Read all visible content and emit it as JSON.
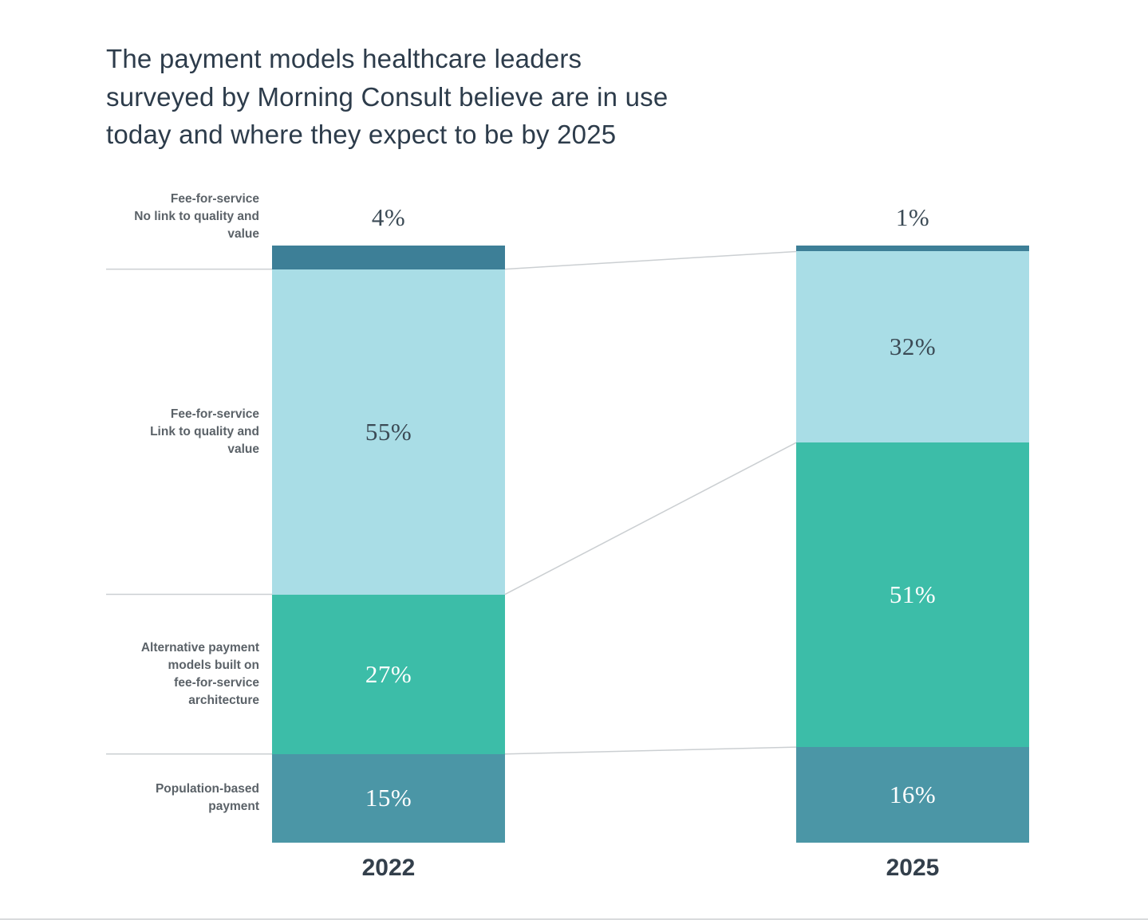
{
  "title": {
    "lines": [
      "The payment models healthcare leaders",
      "surveyed by Morning Consult believe are in use",
      "today and where they expect to be by 2025"
    ]
  },
  "chart_data": {
    "type": "bar",
    "variant": "stacked-100-percent",
    "title": "The payment models healthcare leaders surveyed by Morning Consult believe are in use today and where they expect to be by 2025",
    "unit": "%",
    "legend": "none",
    "ylim": [
      0,
      100
    ],
    "columns": [
      "2022",
      "2025"
    ],
    "segments": [
      {
        "label": "Fee-for-service No link to quality and value",
        "label_lines": [
          "Fee-for-service",
          "No link to quality and",
          "value"
        ],
        "color": "#3d7f97",
        "values": [
          4,
          1
        ],
        "value_placement": "above",
        "value_text_color": "#3b4a55"
      },
      {
        "label": "Fee-for-service Link to quality and value",
        "label_lines": [
          "Fee-for-service",
          "Link to quality and",
          "value"
        ],
        "color": "#a9dde6",
        "values": [
          55,
          32
        ],
        "value_placement": "inside",
        "value_text_color": "#3b4a55"
      },
      {
        "label": "Alternative payment models built on fee-for-service architecture",
        "label_lines": [
          "Alternative payment",
          "models built on",
          "fee-for-service",
          "architecture"
        ],
        "color": "#3cbda8",
        "values": [
          27,
          51
        ],
        "value_placement": "inside",
        "value_text_color": "#ffffff"
      },
      {
        "label": "Population-based payment",
        "label_lines": [
          "Population-based",
          "payment"
        ],
        "color": "#4b96a6",
        "values": [
          15,
          16
        ],
        "value_placement": "inside",
        "value_text_color": "#ffffff"
      }
    ],
    "connector_line_color": "#cbcfd2"
  }
}
